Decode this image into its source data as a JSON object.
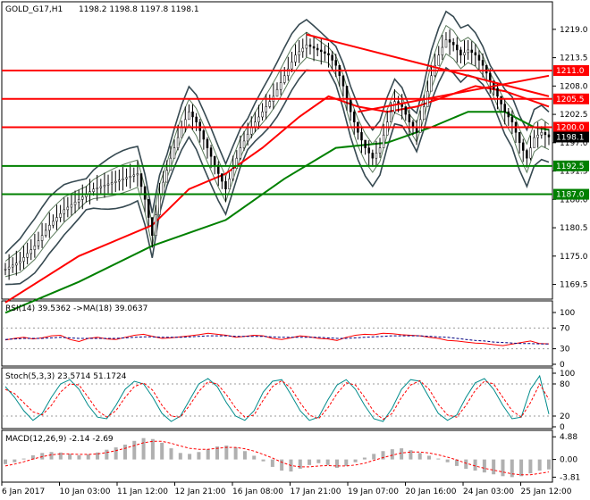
{
  "chart_data": [
    {
      "type": "line",
      "panel": "price",
      "title": "GOLD_G17,H1",
      "ohlc": "1198.2 1198.8 1197.8 1198.1",
      "ylim": [
        1167,
        1224
      ],
      "y_ticks": [
        "1219.0",
        "1213.5",
        "1208.0",
        "1202.5",
        "1197.0",
        "1191.5",
        "1186.0",
        "1180.5",
        "1175.0",
        "1169.5"
      ],
      "current_price": "1198.1",
      "x_ticks": [
        "6 Jan 2017",
        "10 Jan 03:00",
        "11 Jan 12:00",
        "12 Jan 21:00",
        "16 Jan 08:00",
        "17 Jan 21:00",
        "19 Jan 07:00",
        "20 Jan 16:00",
        "24 Jan 03:00",
        "25 Jan 12:00"
      ],
      "price_path": [
        [
          0,
          1172.5
        ],
        [
          4,
          1174
        ],
        [
          8,
          1177
        ],
        [
          12,
          1181
        ],
        [
          16,
          1184
        ],
        [
          20,
          1186
        ],
        [
          24,
          1188
        ],
        [
          28,
          1189
        ],
        [
          32,
          1190
        ],
        [
          36,
          1191
        ],
        [
          38,
          1186
        ],
        [
          40,
          1179
        ],
        [
          42,
          1187
        ],
        [
          45,
          1194
        ],
        [
          48,
          1200
        ],
        [
          50,
          1203
        ],
        [
          52,
          1201
        ],
        [
          55,
          1196
        ],
        [
          58,
          1191
        ],
        [
          60,
          1188
        ],
        [
          62,
          1192
        ],
        [
          64,
          1196
        ],
        [
          67,
          1200
        ],
        [
          70,
          1203
        ],
        [
          73,
          1206
        ],
        [
          76,
          1210
        ],
        [
          79,
          1214
        ],
        [
          82,
          1216
        ],
        [
          85,
          1215
        ],
        [
          88,
          1214
        ],
        [
          90,
          1212
        ],
        [
          92,
          1208
        ],
        [
          94,
          1203
        ],
        [
          96,
          1199
        ],
        [
          98,
          1196
        ],
        [
          100,
          1194
        ],
        [
          102,
          1196
        ],
        [
          104,
          1201
        ],
        [
          106,
          1205
        ],
        [
          108,
          1204
        ],
        [
          110,
          1201
        ],
        [
          112,
          1199
        ],
        [
          114,
          1204
        ],
        [
          116,
          1210
        ],
        [
          118,
          1214
        ],
        [
          120,
          1217
        ],
        [
          122,
          1216
        ],
        [
          124,
          1214
        ],
        [
          126,
          1215
        ],
        [
          128,
          1214
        ],
        [
          130,
          1212
        ],
        [
          132,
          1209
        ],
        [
          134,
          1206
        ],
        [
          136,
          1203
        ],
        [
          138,
          1201
        ],
        [
          140,
          1197
        ],
        [
          142,
          1194
        ],
        [
          144,
          1198
        ],
        [
          146,
          1199
        ],
        [
          148,
          1198.1
        ]
      ],
      "indicators": {
        "ma_red": [
          [
            0,
            1166
          ],
          [
            20,
            1175
          ],
          [
            40,
            1181
          ],
          [
            50,
            1188
          ],
          [
            60,
            1191
          ],
          [
            70,
            1196
          ],
          [
            80,
            1202
          ],
          [
            88,
            1206
          ],
          [
            96,
            1204
          ],
          [
            104,
            1203
          ],
          [
            112,
            1204
          ],
          [
            120,
            1206
          ],
          [
            128,
            1208
          ],
          [
            136,
            1207
          ],
          [
            148,
            1204
          ]
        ],
        "ma_green": [
          [
            0,
            1164
          ],
          [
            20,
            1170
          ],
          [
            40,
            1177
          ],
          [
            60,
            1182
          ],
          [
            76,
            1190
          ],
          [
            90,
            1196
          ],
          [
            104,
            1197
          ],
          [
            116,
            1200
          ],
          [
            126,
            1203
          ],
          [
            136,
            1203
          ],
          [
            144,
            1200
          ],
          [
            148,
            1199.5
          ]
        ]
      },
      "h_levels": [
        {
          "value": 1211.0,
          "label": "1211.0",
          "color": "#ff0000"
        },
        {
          "value": 1205.5,
          "label": "1205.5",
          "color": "#ff0000"
        },
        {
          "value": 1200.0,
          "label": "1200.0",
          "color": "#ff0000"
        },
        {
          "value": 1192.5,
          "label": "1192.5",
          "color": "#008000"
        },
        {
          "value": 1187.0,
          "label": "1187.0",
          "color": "#008000"
        }
      ],
      "trendlines": [
        {
          "from": [
            82,
            1218
          ],
          "to": [
            148,
            1206
          ],
          "color": "#ff0000"
        },
        {
          "from": [
            96,
            1203
          ],
          "to": [
            148,
            1210
          ],
          "color": "#ff0000"
        }
      ],
      "colors": {
        "price": "#000000",
        "ma_red": "#ff0000",
        "ma_green": "#008000",
        "bands": "#374a52",
        "tag_text": "#ffffff",
        "current_tag": "#000000"
      }
    },
    {
      "type": "line",
      "panel": "rsi",
      "title": "RSI(14) 39.5362  ->MA(18) 39.0637",
      "ylim": [
        0,
        100
      ],
      "y_ticks": [
        "100",
        "70",
        "30",
        "0"
      ],
      "levels": [
        70,
        30
      ],
      "series": [
        {
          "values": [
            47,
            50,
            52,
            49,
            51,
            55,
            56,
            48,
            44,
            50,
            52,
            49,
            48,
            52,
            56,
            58,
            54,
            50,
            51,
            53,
            55,
            57,
            60,
            58,
            56,
            52,
            54,
            56,
            55,
            50,
            48,
            51,
            55,
            53,
            50,
            49,
            46,
            52,
            56,
            58,
            57,
            60,
            59,
            57,
            56,
            55,
            52,
            50,
            46,
            45,
            43,
            41,
            40,
            38,
            36,
            39,
            42,
            45,
            40,
            39.5
          ],
          "color": "#ff0000"
        },
        {
          "values": [
            48,
            49,
            50,
            50,
            50,
            51,
            52,
            51,
            50,
            50,
            50,
            50,
            50,
            51,
            52,
            53,
            53,
            52,
            52,
            52,
            53,
            54,
            55,
            55,
            55,
            54,
            54,
            54,
            54,
            53,
            52,
            52,
            52,
            52,
            52,
            51,
            50,
            50,
            51,
            52,
            53,
            54,
            55,
            55,
            55,
            55,
            54,
            53,
            52,
            50,
            48,
            46,
            45,
            43,
            42,
            41,
            40,
            40,
            39.5,
            39.1
          ],
          "color": "#000080"
        }
      ]
    },
    {
      "type": "line",
      "panel": "stochastic",
      "title": "Stoch(5,3,3) 23.5714 51.1724",
      "ylim": [
        0,
        100
      ],
      "y_ticks": [
        "100",
        "80",
        "20",
        "0"
      ],
      "levels": [
        80,
        20
      ],
      "series": [
        {
          "values": [
            75,
            55,
            30,
            12,
            25,
            55,
            80,
            88,
            70,
            40,
            18,
            15,
            40,
            70,
            85,
            80,
            55,
            25,
            10,
            20,
            50,
            80,
            90,
            75,
            45,
            20,
            12,
            30,
            65,
            85,
            88,
            60,
            30,
            12,
            18,
            50,
            78,
            88,
            70,
            40,
            15,
            10,
            35,
            70,
            88,
            85,
            55,
            25,
            12,
            22,
            55,
            82,
            90,
            70,
            40,
            15,
            18,
            70,
            95,
            23.6
          ],
          "color": "#008b8b"
        },
        {
          "values": [
            70,
            62,
            45,
            28,
            22,
            40,
            65,
            80,
            78,
            55,
            30,
            18,
            30,
            55,
            75,
            82,
            68,
            40,
            20,
            18,
            40,
            66,
            84,
            80,
            60,
            35,
            18,
            22,
            50,
            75,
            86,
            72,
            45,
            22,
            15,
            35,
            62,
            82,
            78,
            55,
            28,
            14,
            25,
            55,
            78,
            86,
            70,
            42,
            22,
            18,
            40,
            68,
            85,
            80,
            55,
            30,
            18,
            45,
            80,
            51.2
          ],
          "color": "#ff0000"
        }
      ]
    },
    {
      "type": "bar",
      "panel": "macd",
      "title": "MACD(12,26,9) -2.14 -2.69",
      "ylim": [
        -4.5,
        5.5
      ],
      "y_ticks": [
        "4.88",
        "0.00",
        "-3.81"
      ],
      "histogram": [
        -1.0,
        -0.6,
        0.2,
        0.9,
        1.4,
        1.6,
        1.5,
        1.2,
        0.9,
        1.1,
        1.5,
        2.1,
        2.6,
        3.2,
        4.0,
        4.6,
        4.4,
        3.6,
        2.4,
        1.4,
        1.2,
        1.6,
        2.2,
        2.8,
        3.0,
        2.6,
        1.8,
        0.8,
        -0.4,
        -1.6,
        -2.4,
        -2.6,
        -2.0,
        -1.2,
        -0.8,
        -1.2,
        -1.8,
        -1.4,
        -0.6,
        0.4,
        1.2,
        1.8,
        2.2,
        2.4,
        2.0,
        1.4,
        0.8,
        0.2,
        -0.6,
        -1.4,
        -2.0,
        -2.4,
        -2.8,
        -3.2,
        -3.6,
        -3.8,
        -3.6,
        -3.0,
        -2.4,
        -2.14
      ],
      "signal": [
        -1.4,
        -1.0,
        -0.5,
        0.1,
        0.6,
        1.0,
        1.2,
        1.2,
        1.1,
        1.1,
        1.2,
        1.5,
        1.9,
        2.4,
        3.0,
        3.6,
        3.9,
        3.9,
        3.5,
        2.9,
        2.4,
        2.2,
        2.2,
        2.4,
        2.6,
        2.6,
        2.3,
        1.8,
        1.1,
        0.3,
        -0.6,
        -1.3,
        -1.6,
        -1.6,
        -1.4,
        -1.3,
        -1.4,
        -1.4,
        -1.2,
        -0.8,
        -0.2,
        0.4,
        0.9,
        1.4,
        1.6,
        1.6,
        1.4,
        1.0,
        0.5,
        -0.1,
        -0.8,
        -1.4,
        -1.9,
        -2.3,
        -2.7,
        -3.1,
        -3.3,
        -3.3,
        -3.0,
        -2.69
      ],
      "colors": {
        "histogram": "#b0b0b0",
        "signal": "#ff0000"
      }
    }
  ]
}
